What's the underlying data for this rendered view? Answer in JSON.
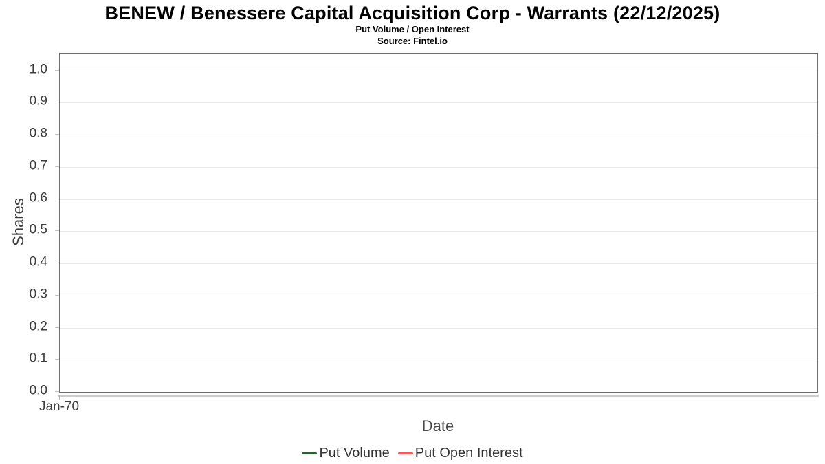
{
  "header": {
    "title": "BENEW / Benessere Capital Acquisition Corp - Warrants (22/12/2025)",
    "subtitle": "Put Volume / Open Interest",
    "source": "Source: Fintel.io"
  },
  "chart_data": {
    "type": "line",
    "title": "BENEW / Benessere Capital Acquisition Corp - Warrants (22/12/2025)",
    "subtitle": "Put Volume / Open Interest",
    "source": "Source: Fintel.io",
    "xlabel": "Date",
    "ylabel": "Shares",
    "x_ticks": [
      "Jan-70"
    ],
    "y_ticks": [
      0,
      0.1,
      0.2,
      0.3,
      0.4,
      0.5,
      0.6,
      0.7,
      0.8,
      0.9,
      1.0
    ],
    "y_tick_labels": [
      "0.0",
      "0.1",
      "0.2",
      "0.3",
      "0.4",
      "0.5",
      "0.6",
      "0.7",
      "0.8",
      "0.9",
      "1.0"
    ],
    "ylim": [
      0,
      1.053
    ],
    "grid": true,
    "legend_position": "bottom",
    "series": [
      {
        "name": "Put Volume",
        "color": "#2c5e35",
        "x": [],
        "values": []
      },
      {
        "name": "Put Open Interest",
        "color": "#f45b5b",
        "x": [],
        "values": []
      }
    ],
    "plot_colors": {
      "gridline": "#e9e9e9",
      "plot_border": "#6f6f6f",
      "axis_line": "#cdcdcd",
      "tick": "#c4c4c4",
      "text": "#3d3d3d"
    }
  }
}
